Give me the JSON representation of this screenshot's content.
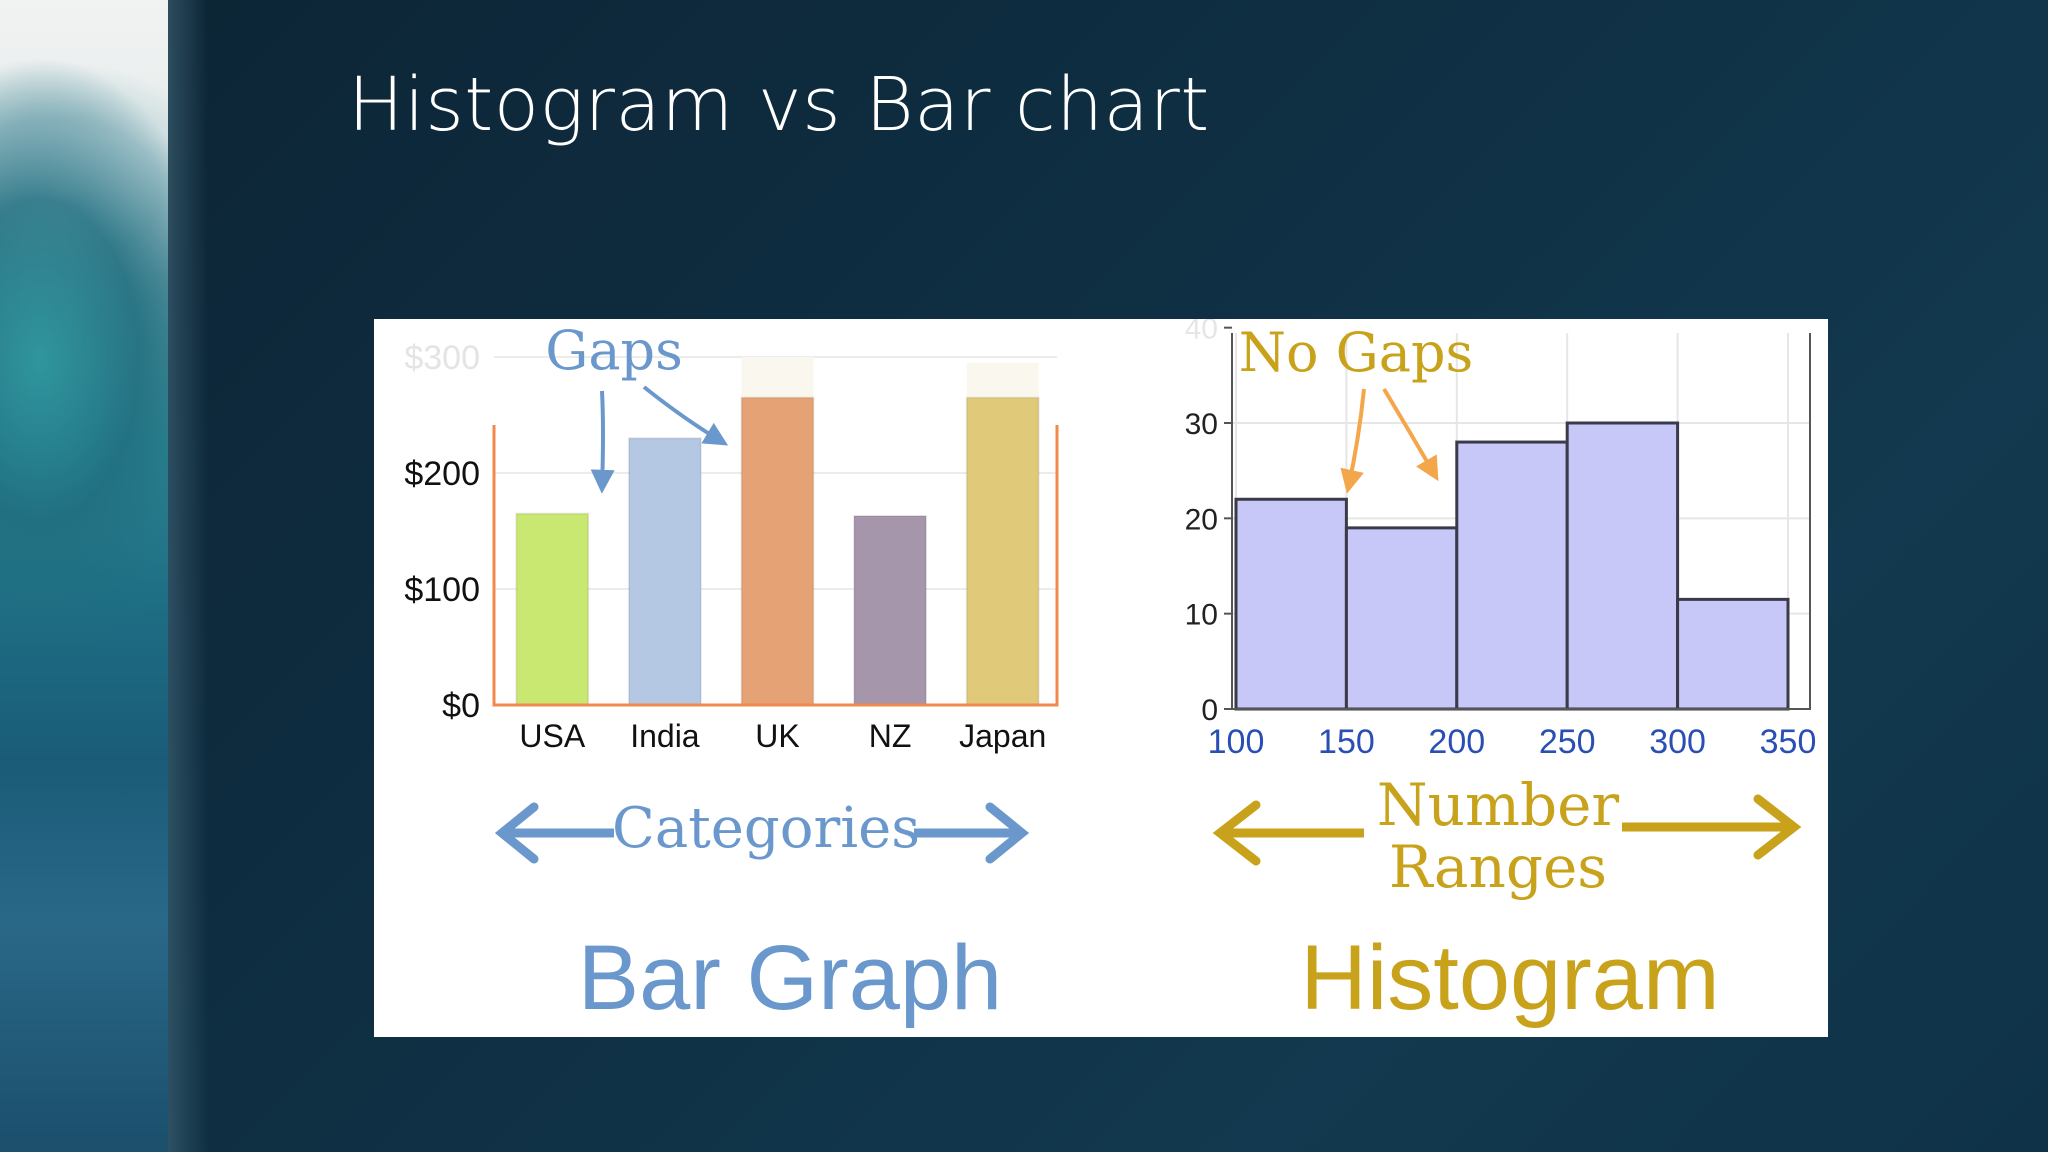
{
  "slide": {
    "title": "Histogram vs Bar chart"
  },
  "chart_data": [
    {
      "type": "bar",
      "categories": [
        "USA",
        "India",
        "UK",
        "NZ",
        "Japan"
      ],
      "values": [
        165,
        230,
        265,
        163,
        265
      ],
      "faded_extension": [
        null,
        null,
        300,
        null,
        295
      ],
      "y_ticks": [
        "$0",
        "$100",
        "$200",
        "$300"
      ],
      "y_tick_values": [
        0,
        100,
        200,
        300
      ],
      "ylim": [
        0,
        300
      ],
      "colors": [
        "#c8e872",
        "#b4c8e4",
        "#e5a274",
        "#a696ac",
        "#e0ca7a"
      ],
      "axis_color": "#f08a4b",
      "annotations": {
        "gaps": "Gaps",
        "categories": "Categories",
        "caption": "Bar Graph"
      },
      "annotation_color": "#6a98cc"
    },
    {
      "type": "bar",
      "bins": [
        [
          100,
          150
        ],
        [
          150,
          200
        ],
        [
          200,
          250
        ],
        [
          250,
          300
        ],
        [
          300,
          350
        ]
      ],
      "values": [
        22,
        19,
        28,
        30,
        11.5
      ],
      "x_ticks": [
        "100",
        "150",
        "200",
        "250",
        "300",
        "350"
      ],
      "x_tick_values": [
        100,
        150,
        200,
        250,
        300,
        350
      ],
      "y_ticks": [
        "0",
        "10",
        "20",
        "30",
        "40"
      ],
      "y_tick_values": [
        0,
        10,
        20,
        30,
        40
      ],
      "ylim": [
        0,
        30
      ],
      "bar_color": "#c8c8f8",
      "tick_label_color": "#2a4fb4",
      "annotations": {
        "no_gaps": "No Gaps",
        "number_ranges_line1": "Number",
        "number_ranges_line2": "Ranges",
        "caption": "Histogram"
      },
      "annotation_color": "#c8a21a",
      "arrow_color": "#f4a64a"
    }
  ]
}
